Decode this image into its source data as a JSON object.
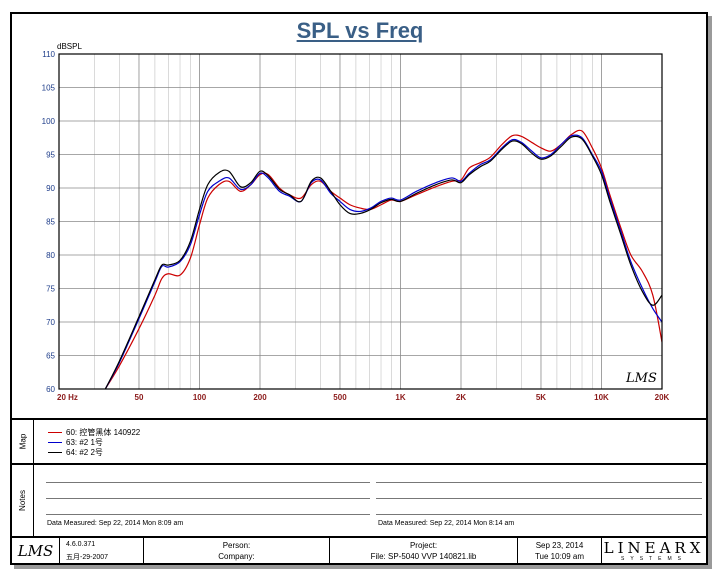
{
  "chart_data": {
    "type": "line",
    "title": "SPL vs Freq",
    "ylabel": "dBSPL",
    "xscale": "log",
    "xlim": [
      20,
      20000
    ],
    "ylim": [
      60,
      110
    ],
    "y_ticks": [
      60,
      65,
      70,
      75,
      80,
      85,
      90,
      95,
      100,
      105,
      110
    ],
    "x_tick_labels": [
      {
        "value": 20,
        "label": "20 Hz"
      },
      {
        "value": 50,
        "label": "50"
      },
      {
        "value": 100,
        "label": "100"
      },
      {
        "value": 200,
        "label": "200"
      },
      {
        "value": 500,
        "label": "500"
      },
      {
        "value": 1000,
        "label": "1K"
      },
      {
        "value": 2000,
        "label": "2K"
      },
      {
        "value": 5000,
        "label": "5K"
      },
      {
        "value": 10000,
        "label": "10K"
      },
      {
        "value": 20000,
        "label": "20K"
      }
    ],
    "grid": true,
    "annotation": "LMS",
    "series": [
      {
        "name": "60: 控管黑体 140922",
        "color": "#cc0000",
        "x": [
          34,
          40,
          50,
          60,
          65,
          70,
          80,
          90,
          100,
          110,
          125,
          140,
          160,
          180,
          200,
          220,
          250,
          280,
          320,
          360,
          400,
          450,
          500,
          560,
          630,
          710,
          800,
          900,
          1000,
          1200,
          1500,
          1800,
          2000,
          2200,
          2500,
          2800,
          3200,
          3600,
          4000,
          4500,
          5000,
          5600,
          6300,
          7100,
          8000,
          9000,
          10000,
          11000,
          12500,
          14000,
          16000,
          18000,
          20000
        ],
        "y": [
          60,
          63.5,
          69,
          74,
          76.5,
          77.2,
          77,
          79.5,
          84.5,
          88.5,
          90.5,
          91,
          89.5,
          90.5,
          92,
          92,
          90,
          89,
          88.5,
          90.5,
          91,
          89.5,
          88.5,
          87.5,
          87,
          86.8,
          87.5,
          88.2,
          88,
          89,
          90.2,
          91,
          91.2,
          93,
          93.8,
          94.6,
          96.5,
          97.8,
          97.7,
          96.8,
          96,
          95.5,
          96.5,
          98,
          98.5,
          96,
          93,
          89,
          84,
          80,
          77.5,
          74,
          67
        ]
      },
      {
        "name": "63: #2   1号",
        "color": "#0000cc",
        "x": [
          34,
          40,
          50,
          60,
          65,
          70,
          80,
          90,
          100,
          110,
          125,
          140,
          160,
          180,
          200,
          220,
          250,
          280,
          320,
          360,
          400,
          450,
          500,
          560,
          630,
          710,
          800,
          900,
          1000,
          1200,
          1500,
          1800,
          2000,
          2200,
          2500,
          2800,
          3200,
          3600,
          4000,
          4500,
          5000,
          5600,
          6300,
          7100,
          8000,
          9000,
          10000,
          11000,
          12500,
          14000,
          16000,
          18000,
          20000
        ],
        "y": [
          60,
          64,
          70.5,
          76,
          78.3,
          78.2,
          79,
          81.5,
          86,
          89.5,
          91,
          91.5,
          89.8,
          90.5,
          92.2,
          91.5,
          89.5,
          88.8,
          88,
          90.8,
          91.2,
          89.2,
          88,
          86.8,
          86.5,
          87,
          88,
          88.5,
          88.2,
          89.5,
          90.8,
          91.5,
          91,
          92.2,
          93.5,
          94.2,
          96,
          97.2,
          96.8,
          95.5,
          94.5,
          95,
          96.5,
          97.8,
          97.5,
          95,
          92.5,
          88.5,
          83.5,
          79,
          75,
          72,
          70
        ]
      },
      {
        "name": "64: #2   2号",
        "color": "#000000",
        "x": [
          34,
          40,
          50,
          60,
          65,
          70,
          80,
          90,
          100,
          110,
          125,
          140,
          160,
          180,
          200,
          220,
          250,
          280,
          320,
          360,
          400,
          450,
          500,
          560,
          630,
          710,
          800,
          900,
          1000,
          1200,
          1500,
          1800,
          2000,
          2200,
          2500,
          2800,
          3200,
          3600,
          4000,
          4500,
          5000,
          5600,
          6300,
          7100,
          8000,
          9000,
          10000,
          11000,
          12500,
          14000,
          16000,
          18000,
          20000
        ],
        "y": [
          60,
          64.2,
          70.8,
          76.3,
          78.5,
          78.5,
          79.2,
          82,
          86.8,
          90.5,
          92.3,
          92.5,
          90.2,
          90.8,
          92.5,
          91.8,
          89.8,
          89,
          88,
          91,
          91.5,
          89.5,
          87.5,
          86.2,
          86.2,
          86.8,
          87.8,
          88.3,
          88,
          89.2,
          90.5,
          91.2,
          90.8,
          92,
          93.2,
          94,
          95.8,
          97,
          96.6,
          95.2,
          94.3,
          94.8,
          96.2,
          97.6,
          97.3,
          94.8,
          92,
          88,
          83,
          78.5,
          74.5,
          72.5,
          74
        ]
      }
    ]
  },
  "legend_label": "Map",
  "notes_label": "Notes",
  "notes": {
    "left_measured": "Data Measured:  Sep 22, 2014   Mon  8:09 am",
    "right_measured": "Data Measured:  Sep 22, 2014   Mon  8:14 am"
  },
  "footer": {
    "logo": "LMS",
    "version": "4.6.0.371",
    "version_date": "五月-29-2007",
    "person_label": "Person:",
    "company_label": "Company:",
    "project_label": "Project:",
    "file_label": "File:  SP-5040 VVP 140821.lib",
    "date": "Sep 23, 2014",
    "time": "Tue 10:09 am",
    "brand": "LINEARX",
    "brand_sub": "SYSTEMS"
  }
}
